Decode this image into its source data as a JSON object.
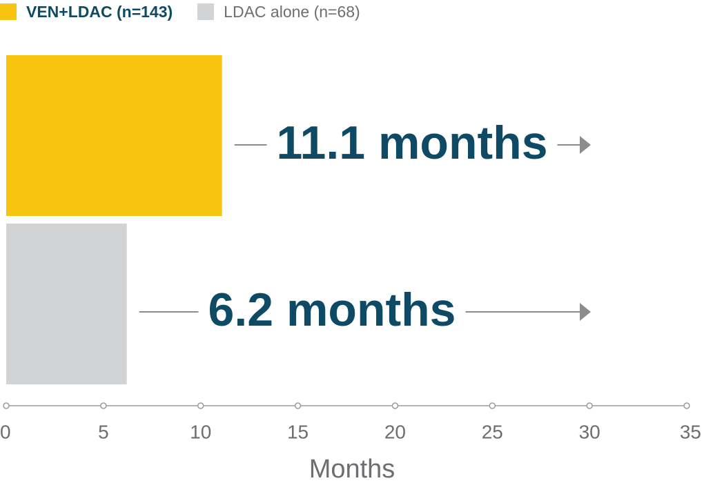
{
  "colors": {
    "primary": "#f7c50f",
    "secondary": "#d1d3d4",
    "value_text": "#0e4a63",
    "axis": "#9b9b9b",
    "tick_text": "#6d6e71",
    "arrow": "#8c8c8c"
  },
  "legend": [
    {
      "label": "VEN+LDAC (n=143)",
      "color": "#f7c50f",
      "bold": true
    },
    {
      "label": "LDAC alone (n=68)",
      "color": "#d1d3d4",
      "bold": false
    }
  ],
  "chart_data": {
    "type": "bar",
    "orientation": "horizontal",
    "categories": [
      "VEN+LDAC (n=143)",
      "LDAC alone (n=68)"
    ],
    "series": [
      {
        "name": "VEN+LDAC (n=143)",
        "values": [
          11.1,
          null
        ]
      },
      {
        "name": "LDAC alone (n=68)",
        "values": [
          null,
          6.2
        ]
      }
    ],
    "values": [
      11.1,
      6.2
    ],
    "value_labels": [
      "11.1 months",
      "6.2 months"
    ],
    "xlabel": "Months",
    "ylabel": "",
    "xlim": [
      0,
      35
    ],
    "xticks": [
      0,
      5,
      10,
      15,
      20,
      25,
      30,
      35
    ],
    "xtick_labels": [
      "0",
      "5",
      "10",
      "15",
      "20",
      "25",
      "30",
      "35"
    ],
    "grid": false,
    "legend_position": "top-left"
  }
}
